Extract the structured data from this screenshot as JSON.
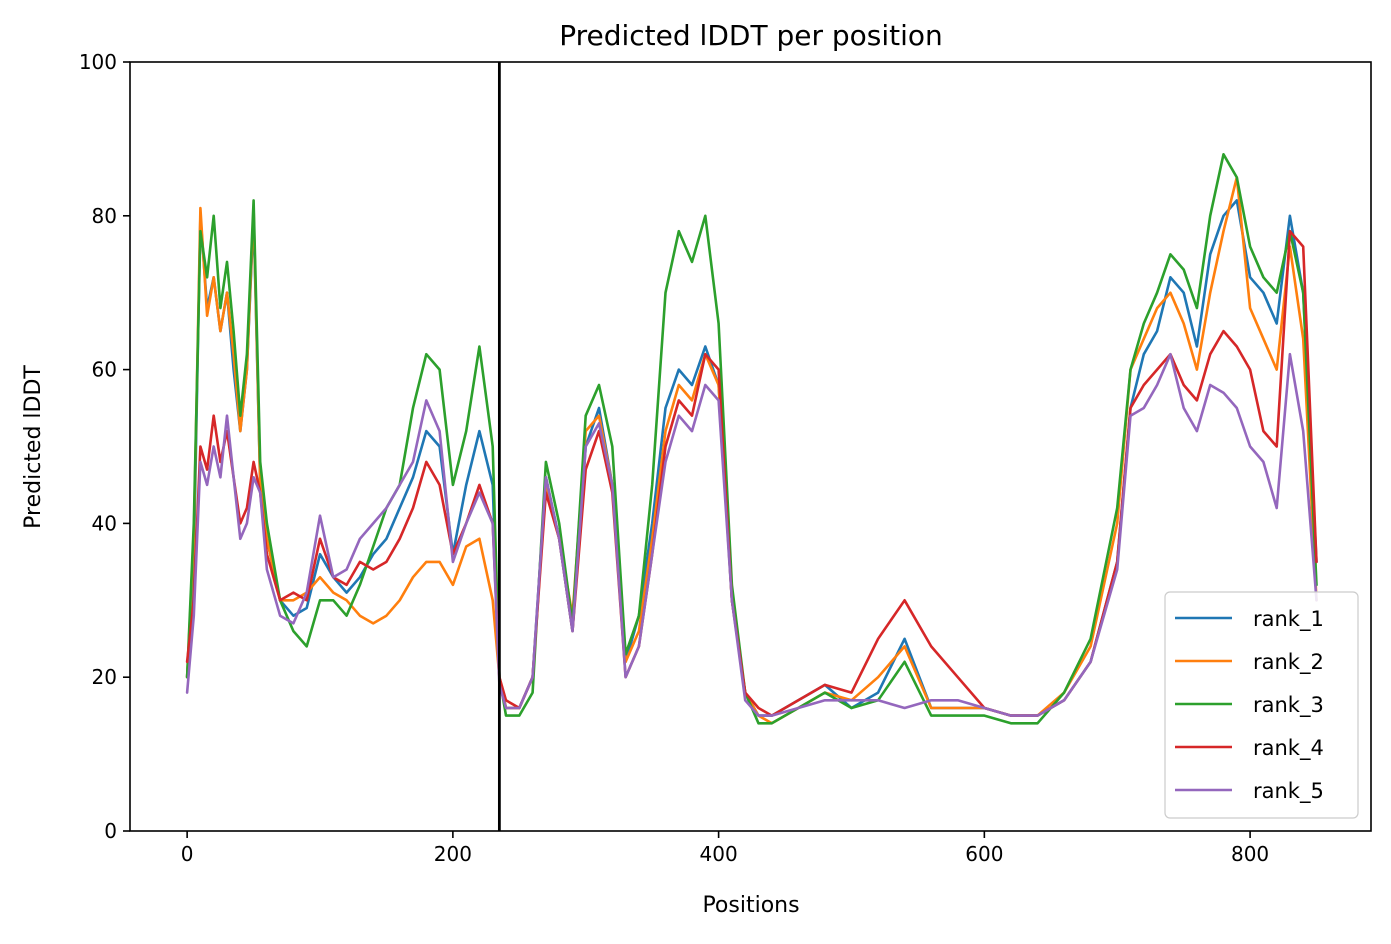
{
  "chart_data": {
    "type": "line",
    "title": "Predicted lDDT per position",
    "xlabel": "Positions",
    "ylabel": "Predicted lDDT",
    "xlim": [
      -43,
      891
    ],
    "ylim": [
      0,
      100
    ],
    "x_ticks": [
      0,
      200,
      400,
      600,
      800
    ],
    "y_ticks": [
      0,
      20,
      40,
      60,
      80,
      100
    ],
    "x_tick_labels": [
      "0",
      "200",
      "400",
      "600",
      "800"
    ],
    "y_tick_labels": [
      "0",
      "20",
      "40",
      "60",
      "80",
      "100"
    ],
    "grid": false,
    "legend_position": "lower right",
    "vertical_line": {
      "x": 235,
      "color": "#000000"
    },
    "x": [
      0,
      5,
      10,
      15,
      20,
      25,
      30,
      35,
      40,
      45,
      50,
      55,
      60,
      70,
      80,
      90,
      100,
      110,
      120,
      130,
      140,
      150,
      160,
      170,
      180,
      190,
      200,
      210,
      220,
      230,
      235,
      240,
      250,
      260,
      270,
      280,
      290,
      300,
      310,
      320,
      330,
      340,
      350,
      360,
      370,
      380,
      390,
      400,
      410,
      420,
      430,
      440,
      460,
      480,
      500,
      520,
      540,
      560,
      580,
      600,
      620,
      640,
      660,
      680,
      700,
      710,
      720,
      730,
      740,
      750,
      760,
      770,
      780,
      790,
      800,
      810,
      820,
      830,
      840,
      850
    ],
    "series": [
      {
        "name": "rank_1",
        "color": "#1f77b4",
        "values": [
          20,
          35,
          80,
          68,
          72,
          65,
          70,
          60,
          52,
          60,
          80,
          45,
          38,
          30,
          28,
          29,
          36,
          33,
          31,
          33,
          36,
          38,
          42,
          46,
          52,
          50,
          36,
          45,
          52,
          45,
          20,
          16,
          16,
          20,
          46,
          38,
          26,
          50,
          55,
          45,
          22,
          28,
          40,
          55,
          60,
          58,
          63,
          58,
          30,
          18,
          15,
          15,
          17,
          19,
          16,
          18,
          25,
          16,
          16,
          16,
          15,
          15,
          17,
          22,
          35,
          55,
          62,
          65,
          72,
          70,
          63,
          75,
          80,
          82,
          72,
          70,
          66,
          80,
          70,
          35
        ]
      },
      {
        "name": "rank_2",
        "color": "#ff7f0e",
        "values": [
          20,
          38,
          81,
          67,
          72,
          65,
          70,
          62,
          52,
          60,
          81,
          45,
          38,
          30,
          30,
          31,
          33,
          31,
          30,
          28,
          27,
          28,
          30,
          33,
          35,
          35,
          32,
          37,
          38,
          30,
          20,
          16,
          16,
          20,
          45,
          38,
          28,
          52,
          54,
          45,
          22,
          26,
          38,
          52,
          58,
          56,
          62,
          58,
          30,
          18,
          15,
          14,
          16,
          18,
          17,
          20,
          24,
          16,
          16,
          16,
          15,
          15,
          18,
          24,
          40,
          60,
          64,
          68,
          70,
          66,
          60,
          70,
          78,
          85,
          68,
          64,
          60,
          76,
          64,
          30
        ]
      },
      {
        "name": "rank_3",
        "color": "#2ca02c",
        "values": [
          20,
          40,
          78,
          72,
          80,
          68,
          74,
          65,
          54,
          62,
          82,
          48,
          40,
          30,
          26,
          24,
          30,
          30,
          28,
          32,
          37,
          42,
          45,
          55,
          62,
          60,
          45,
          52,
          63,
          50,
          20,
          15,
          15,
          18,
          48,
          40,
          27,
          54,
          58,
          50,
          23,
          28,
          45,
          70,
          78,
          74,
          80,
          66,
          32,
          18,
          14,
          14,
          16,
          18,
          16,
          17,
          22,
          15,
          15,
          15,
          14,
          14,
          18,
          25,
          42,
          60,
          66,
          70,
          75,
          73,
          68,
          80,
          88,
          85,
          76,
          72,
          70,
          78,
          70,
          32
        ]
      },
      {
        "name": "rank_4",
        "color": "#d62728",
        "values": [
          22,
          30,
          50,
          47,
          54,
          48,
          52,
          46,
          40,
          42,
          48,
          44,
          36,
          30,
          31,
          30,
          38,
          33,
          32,
          35,
          34,
          35,
          38,
          42,
          48,
          45,
          36,
          40,
          45,
          40,
          20,
          17,
          16,
          20,
          44,
          38,
          26,
          47,
          52,
          44,
          20,
          24,
          36,
          50,
          56,
          54,
          62,
          60,
          30,
          18,
          16,
          15,
          17,
          19,
          18,
          25,
          30,
          24,
          20,
          16,
          15,
          15,
          17,
          22,
          35,
          55,
          58,
          60,
          62,
          58,
          56,
          62,
          65,
          63,
          60,
          52,
          50,
          78,
          76,
          35
        ]
      },
      {
        "name": "rank_5",
        "color": "#9467bd",
        "values": [
          18,
          28,
          48,
          45,
          50,
          46,
          54,
          46,
          38,
          40,
          46,
          44,
          34,
          28,
          27,
          31,
          41,
          33,
          34,
          38,
          40,
          42,
          45,
          48,
          56,
          52,
          35,
          40,
          44,
          40,
          19,
          16,
          16,
          20,
          46,
          38,
          26,
          50,
          53,
          45,
          20,
          24,
          36,
          48,
          54,
          52,
          58,
          56,
          30,
          17,
          15,
          15,
          16,
          17,
          17,
          17,
          16,
          17,
          17,
          16,
          15,
          15,
          17,
          22,
          34,
          54,
          55,
          58,
          62,
          55,
          52,
          58,
          57,
          55,
          50,
          48,
          42,
          62,
          52,
          30
        ]
      }
    ]
  }
}
